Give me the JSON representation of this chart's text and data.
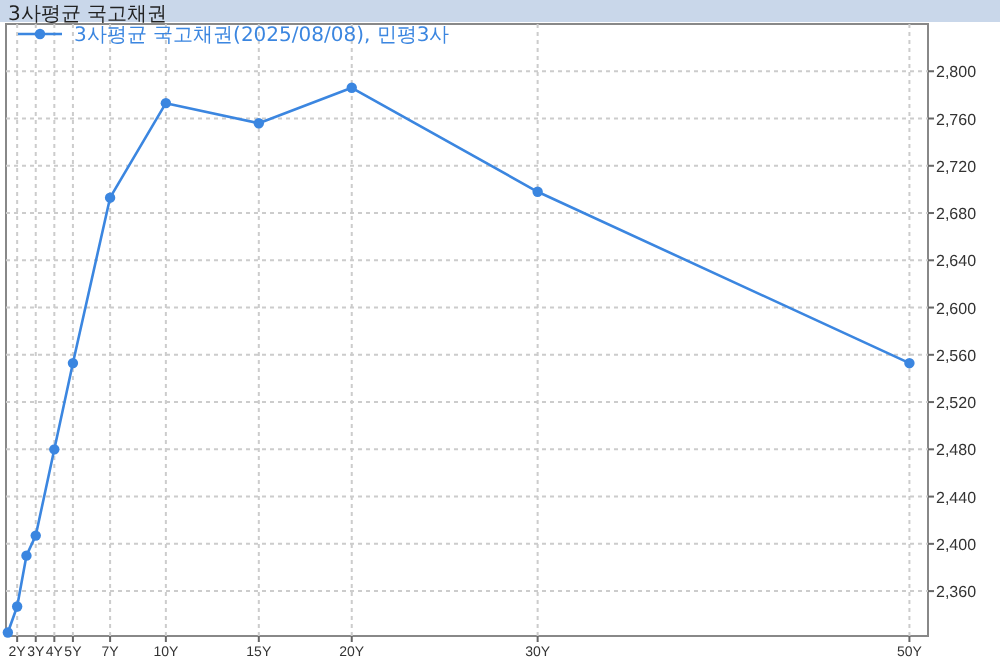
{
  "chart_data": {
    "type": "line",
    "title": "3사평균 국고채권",
    "x": [
      1.5,
      2,
      2.5,
      3,
      4,
      5,
      7,
      10,
      15,
      20,
      30,
      50
    ],
    "series": [
      {
        "name": "3사평균 국고채권(2025/08/08), 민평3사",
        "color": "#3b86e0",
        "values": [
          2325,
          2347,
          2390,
          2407,
          2480,
          2553,
          2693,
          2773,
          2756,
          2786,
          2698,
          2553
        ]
      }
    ],
    "xlim": [
      1.4,
      51
    ],
    "ylim": [
      2322,
      2840
    ],
    "xticks": [
      {
        "value": 2,
        "label": "2Y"
      },
      {
        "value": 3,
        "label": "3Y"
      },
      {
        "value": 4,
        "label": "4Y"
      },
      {
        "value": 5,
        "label": "5Y"
      },
      {
        "value": 7,
        "label": "7Y"
      },
      {
        "value": 10,
        "label": "10Y"
      },
      {
        "value": 15,
        "label": "15Y"
      },
      {
        "value": 20,
        "label": "20Y"
      },
      {
        "value": 30,
        "label": "30Y"
      },
      {
        "value": 50,
        "label": "50Y"
      }
    ],
    "yticks": [
      {
        "value": 2360,
        "label": "2,360"
      },
      {
        "value": 2400,
        "label": "2,400"
      },
      {
        "value": 2440,
        "label": "2,440"
      },
      {
        "value": 2480,
        "label": "2,480"
      },
      {
        "value": 2520,
        "label": "2,520"
      },
      {
        "value": 2560,
        "label": "2,560"
      },
      {
        "value": 2600,
        "label": "2,600"
      },
      {
        "value": 2640,
        "label": "2,640"
      },
      {
        "value": 2680,
        "label": "2,680"
      },
      {
        "value": 2720,
        "label": "2,720"
      },
      {
        "value": 2760,
        "label": "2,760"
      },
      {
        "value": 2800,
        "label": "2,800"
      }
    ],
    "grid": true,
    "legend": "top left",
    "marker": "circle"
  }
}
